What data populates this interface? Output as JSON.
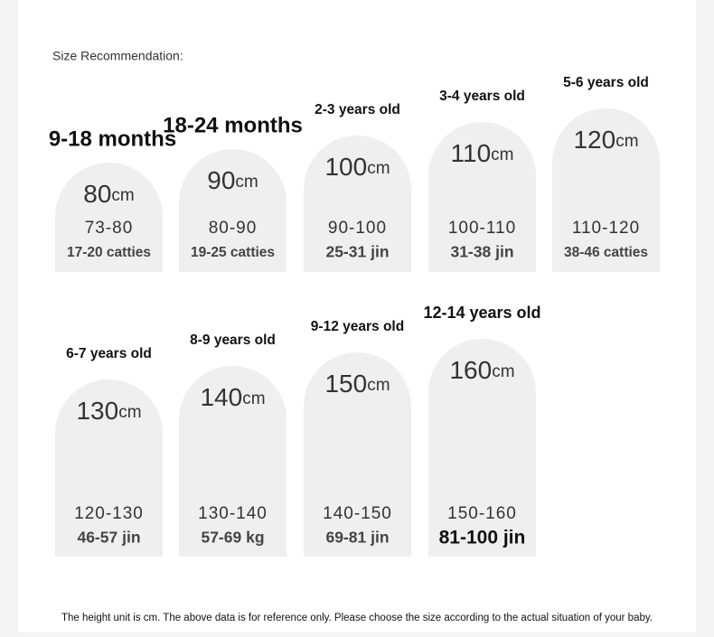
{
  "header": {
    "title": "Size Recommendation:"
  },
  "cards": [
    {
      "age": "9-18 months",
      "size": "80",
      "unit": "cm",
      "range": "73-80",
      "weight": "17-20 catties"
    },
    {
      "age": "18-24 months",
      "size": "90",
      "unit": "cm",
      "range": "80-90",
      "weight": "19-25 catties"
    },
    {
      "age": "2-3 years old",
      "size": "100",
      "unit": "cm",
      "range": "90-100",
      "weight": "25-31 jin"
    },
    {
      "age": "3-4 years old",
      "size": "110",
      "unit": "cm",
      "range": "100-110",
      "weight": "31-38 jin"
    },
    {
      "age": "5-6 years old",
      "size": "120",
      "unit": "cm",
      "range": "110-120",
      "weight": "38-46 catties"
    },
    {
      "age": "6-7 years old",
      "size": "130",
      "unit": "cm",
      "range": "120-130",
      "weight": "46-57 jin"
    },
    {
      "age": "8-9 years old",
      "size": "140",
      "unit": "cm",
      "range": "130-140",
      "weight": "57-69 kg"
    },
    {
      "age": "9-12 years old",
      "size": "150",
      "unit": "cm",
      "range": "140-150",
      "weight": "69-81 jin"
    },
    {
      "age": "12-14 years old",
      "size": "160",
      "unit": "cm",
      "range": "150-160",
      "weight": "81-100 jin"
    }
  ],
  "footer": {
    "note": "The height unit is cm. The above data is for reference only. Please choose the size according to the actual situation of your baby."
  }
}
